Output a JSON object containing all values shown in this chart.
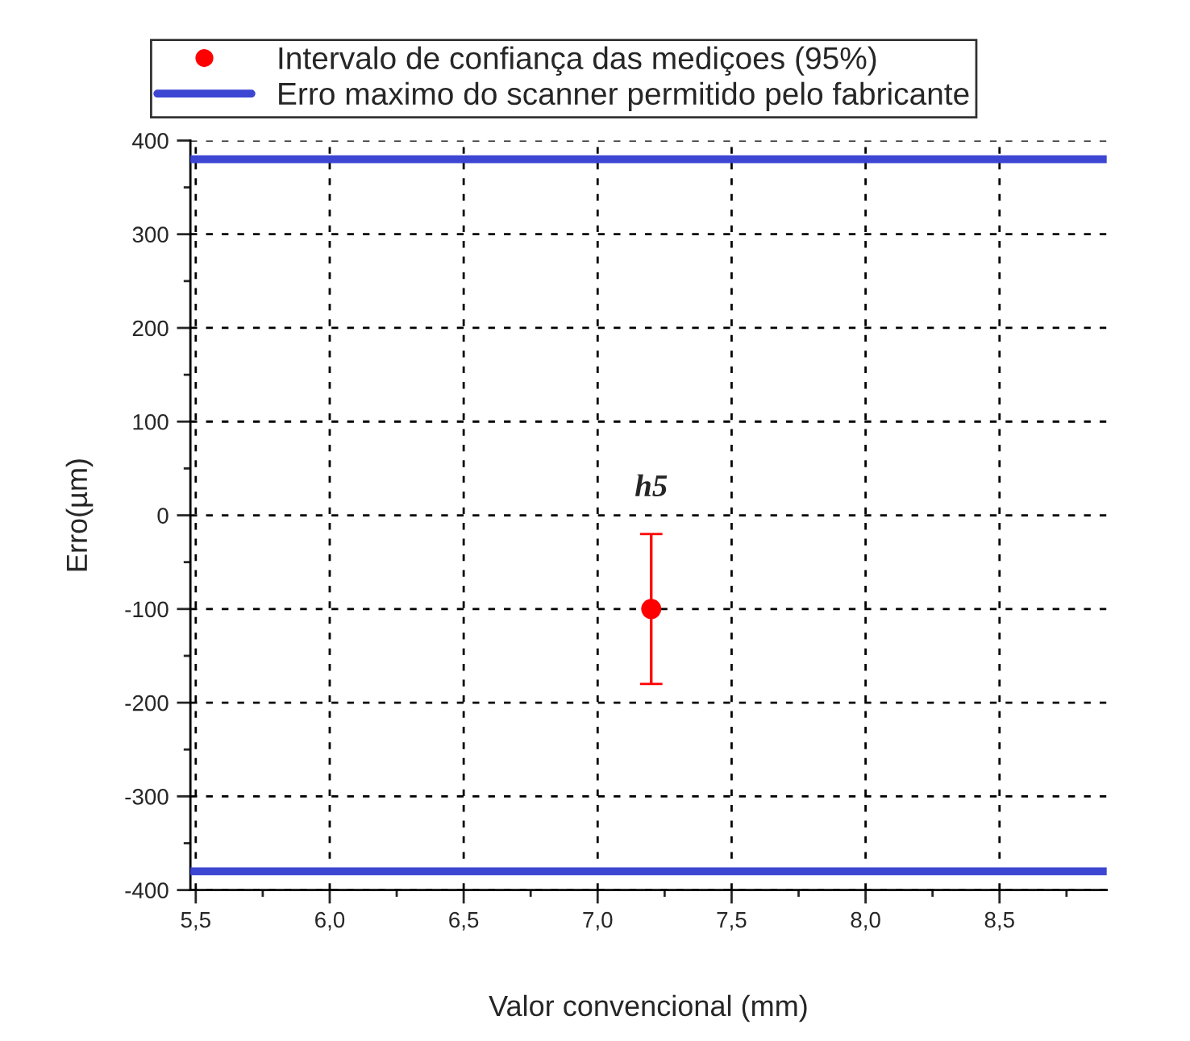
{
  "chart_data": {
    "type": "scatter",
    "x": [
      7.2
    ],
    "xlabel": "Valor convencional (mm)",
    "ylabel": "Erro(µm)",
    "series": [
      {
        "name": "Intervalo de confiança das mediçoes (95%)",
        "color": "#ff0000",
        "values": [
          -100
        ],
        "errors": [
          [
            -180,
            -20
          ]
        ]
      }
    ],
    "ref_lines": [
      {
        "axis": "y",
        "value": 380,
        "label": "Erro maximo do scanner permitido pelo fabricante",
        "color": "#3c46d2"
      },
      {
        "axis": "y",
        "value": -380,
        "color": "#3c46d2"
      }
    ],
    "annotations": [
      {
        "text": "h5",
        "x": 7.2,
        "y": -20
      }
    ],
    "xlim": [
      5.48,
      8.9
    ],
    "xticks": [
      {
        "value": 5.5,
        "label": "5,5"
      },
      {
        "value": 6.0,
        "label": "6,0"
      },
      {
        "value": 6.5,
        "label": "6,5"
      },
      {
        "value": 7.0,
        "label": "7,0"
      },
      {
        "value": 7.5,
        "label": "7,5"
      },
      {
        "value": 8.0,
        "label": "8,0"
      },
      {
        "value": 8.5,
        "label": "8,5"
      }
    ],
    "ylim": [
      -400,
      400
    ],
    "yticks": [
      -400,
      -300,
      -200,
      -100,
      0,
      100,
      200,
      300,
      400
    ],
    "grid": true,
    "legend": "top",
    "marker": "circle"
  }
}
